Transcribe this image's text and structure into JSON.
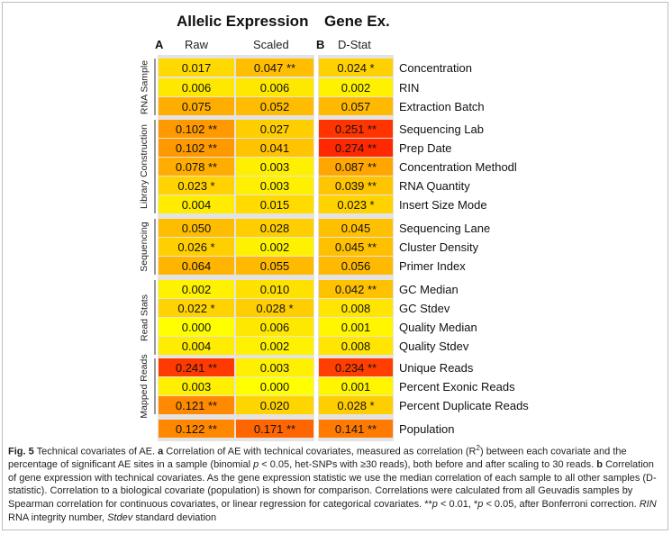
{
  "headers": {
    "allelic": "Allelic Expression",
    "gene": "Gene Ex.",
    "letter_a": "A",
    "letter_b": "B",
    "raw": "Raw",
    "scaled": "Scaled",
    "dstat": "D-Stat"
  },
  "groups": [
    "RNA Sample",
    "Library Construction",
    "Sequencing",
    "Read Stats",
    "Mapped Reads"
  ],
  "chart_data": {
    "type": "heatmap",
    "columns": [
      "Raw",
      "Scaled",
      "D-Stat"
    ],
    "rows": [
      {
        "label": "Concentration",
        "group": "RNA Sample",
        "values": [
          0.017,
          0.047,
          0.024
        ],
        "text": [
          "0.017",
          "0.047 **",
          "0.024 *"
        ]
      },
      {
        "label": "RIN",
        "group": "RNA Sample",
        "values": [
          0.006,
          0.006,
          0.002
        ],
        "text": [
          "0.006",
          "0.006",
          "0.002"
        ]
      },
      {
        "label": "Extraction Batch",
        "group": "RNA Sample",
        "values": [
          0.075,
          0.052,
          0.057
        ],
        "text": [
          "0.075",
          "0.052",
          "0.057"
        ]
      },
      {
        "label": "Sequencing Lab",
        "group": "Library Construction",
        "values": [
          0.102,
          0.027,
          0.251
        ],
        "text": [
          "0.102 **",
          "0.027",
          "0.251 **"
        ]
      },
      {
        "label": "Prep Date",
        "group": "Library Construction",
        "values": [
          0.102,
          0.041,
          0.274
        ],
        "text": [
          "0.102 **",
          "0.041",
          "0.274 **"
        ]
      },
      {
        "label": "Concentration Methodl",
        "group": "Library Construction",
        "values": [
          0.078,
          0.003,
          0.087
        ],
        "text": [
          "0.078 **",
          "0.003",
          "0.087 **"
        ]
      },
      {
        "label": "RNA Quantity",
        "group": "Library Construction",
        "values": [
          0.023,
          0.003,
          0.039
        ],
        "text": [
          "0.023 *",
          "0.003",
          "0.039 **"
        ]
      },
      {
        "label": "Insert Size Mode",
        "group": "Library Construction",
        "values": [
          0.004,
          0.015,
          0.023
        ],
        "text": [
          "0.004",
          "0.015",
          "0.023 *"
        ]
      },
      {
        "label": "Sequencing Lane",
        "group": "Sequencing",
        "values": [
          0.05,
          0.028,
          0.045
        ],
        "text": [
          "0.050",
          "0.028",
          "0.045"
        ]
      },
      {
        "label": "Cluster Density",
        "group": "Sequencing",
        "values": [
          0.026,
          0.002,
          0.045
        ],
        "text": [
          "0.026 *",
          "0.002",
          "0.045 **"
        ]
      },
      {
        "label": "Primer Index",
        "group": "Sequencing",
        "values": [
          0.064,
          0.055,
          0.056
        ],
        "text": [
          "0.064",
          "0.055",
          "0.056"
        ]
      },
      {
        "label": "GC Median",
        "group": "Read Stats",
        "values": [
          0.002,
          0.01,
          0.042
        ],
        "text": [
          "0.002",
          "0.010",
          "0.042 **"
        ]
      },
      {
        "label": "GC Stdev",
        "group": "Read Stats",
        "values": [
          0.022,
          0.028,
          0.008
        ],
        "text": [
          "0.022 *",
          "0.028 *",
          "0.008"
        ]
      },
      {
        "label": "Quality Median",
        "group": "Read Stats",
        "values": [
          0.0,
          0.006,
          0.001
        ],
        "text": [
          "0.000",
          "0.006",
          "0.001"
        ]
      },
      {
        "label": "Quality Stdev",
        "group": "Read Stats",
        "values": [
          0.004,
          0.002,
          0.008
        ],
        "text": [
          "0.004",
          "0.002",
          "0.008"
        ]
      },
      {
        "label": "Unique Reads",
        "group": "Mapped Reads",
        "values": [
          0.241,
          0.003,
          0.234
        ],
        "text": [
          "0.241 **",
          "0.003",
          "0.234 **"
        ]
      },
      {
        "label": "Percent Exonic Reads",
        "group": "Mapped Reads",
        "values": [
          0.003,
          0.0,
          0.001
        ],
        "text": [
          "0.003",
          "0.000",
          "0.001"
        ]
      },
      {
        "label": "Percent Duplicate Reads",
        "group": "Mapped Reads",
        "values": [
          0.121,
          0.02,
          0.028
        ],
        "text": [
          "0.121 **",
          "0.020",
          "0.028 *"
        ]
      },
      {
        "label": "Population",
        "group": "",
        "values": [
          0.122,
          0.171,
          0.141
        ],
        "text": [
          "0.122 **",
          "0.171 **",
          "0.141 **"
        ]
      }
    ],
    "colors": {
      "low": "#ffff00",
      "mid": "#ffa500",
      "high": "#ff2a00"
    }
  },
  "caption": {
    "fig": "Fig. 5",
    "t1": " Technical covariates of AE. ",
    "a": "a",
    "t2": " Correlation of AE with technical covariates, measured as correlation (R",
    "sup": "2",
    "t3": ") between each covariate and the percentage of significant AE sites in a sample (binomial ",
    "p1": "p",
    "t4": " < 0.05, het-SNPs with ≥30 reads), both before and after scaling to 30 reads. ",
    "b": "b",
    "t5": " Correlation of gene expression with technical covariates. As the gene expression statistic we use the median correlation of each sample to all other samples (D-statistic). Correlation to a biological covariate (population) is shown for comparison. Correlations were calculated from all Geuvadis samples by Spearman correlation for continuous covariates, or linear regression for categorical covariates. **",
    "p2": "p",
    "t6": " < 0.01, *",
    "p3": "p",
    "t7": " < 0.05, after Bonferroni correction. ",
    "rin": "RIN",
    "t8": " RNA integrity number, ",
    "stdev": "Stdev",
    "t9": " standard deviation"
  }
}
